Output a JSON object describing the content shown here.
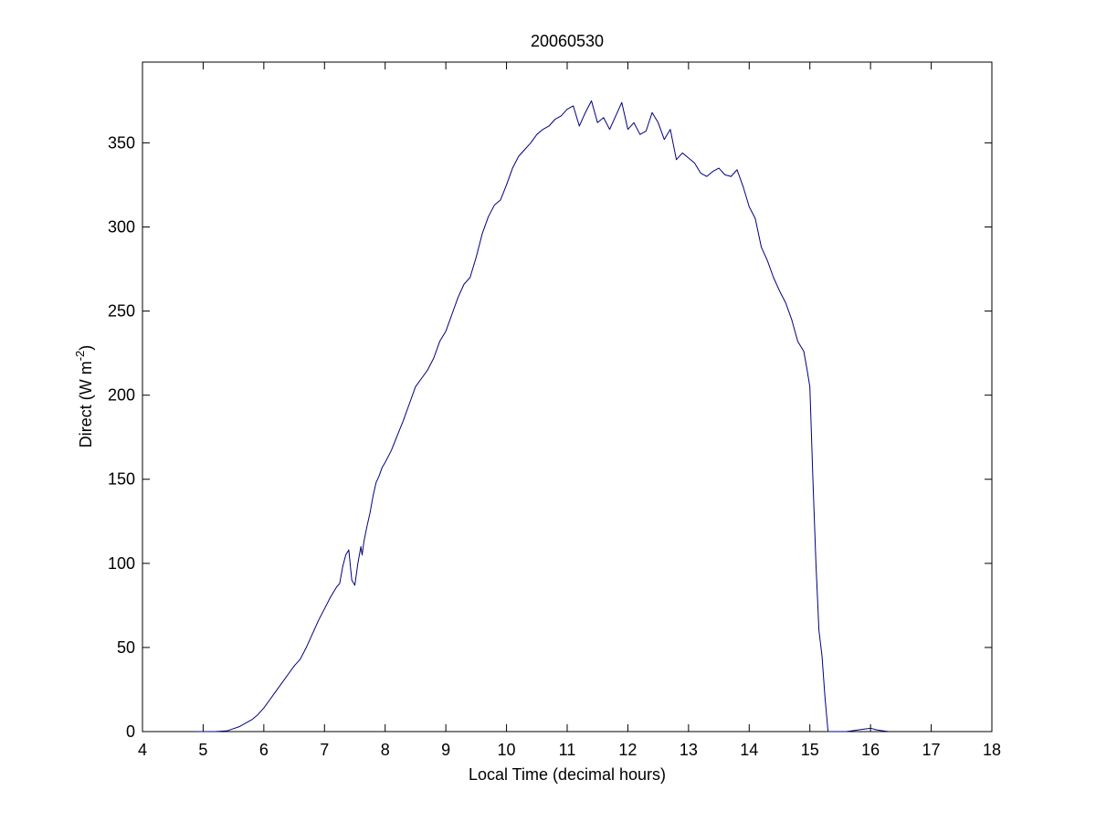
{
  "chart_data": {
    "type": "line",
    "title": "20060530",
    "xlabel": "Local Time (decimal hours)",
    "ylabel": {
      "prefix": "Direct (W m",
      "exponent": "-2",
      "suffix": ")"
    },
    "xlim": [
      4,
      18
    ],
    "ylim": [
      0,
      398
    ],
    "xticks": [
      4,
      5,
      6,
      7,
      8,
      9,
      10,
      11,
      12,
      13,
      14,
      15,
      16,
      17,
      18
    ],
    "yticks": [
      0,
      50,
      100,
      150,
      200,
      250,
      300,
      350
    ],
    "grid": false,
    "colors": {
      "line": "#00007f",
      "axes": "#000000",
      "background": "#ffffff"
    },
    "series": [
      {
        "x": [
          4.88,
          5.0,
          5.2,
          5.4,
          5.6,
          5.8,
          5.9,
          6.0,
          6.1,
          6.2,
          6.3,
          6.4,
          6.5,
          6.6,
          6.7,
          6.8,
          6.9,
          7.0,
          7.1,
          7.2,
          7.25,
          7.3,
          7.35,
          7.4,
          7.45,
          7.5,
          7.55,
          7.6,
          7.62,
          7.65,
          7.7,
          7.75,
          7.8,
          7.85,
          7.9,
          7.95,
          8.0,
          8.1,
          8.2,
          8.3,
          8.4,
          8.5,
          8.6,
          8.7,
          8.8,
          8.9,
          9.0,
          9.1,
          9.2,
          9.3,
          9.4,
          9.5,
          9.6,
          9.7,
          9.8,
          9.9,
          10.0,
          10.1,
          10.2,
          10.3,
          10.4,
          10.5,
          10.6,
          10.7,
          10.8,
          10.9,
          11.0,
          11.1,
          11.2,
          11.3,
          11.4,
          11.5,
          11.6,
          11.7,
          11.8,
          11.9,
          12.0,
          12.1,
          12.2,
          12.3,
          12.4,
          12.5,
          12.6,
          12.7,
          12.8,
          12.9,
          13.0,
          13.1,
          13.2,
          13.3,
          13.4,
          13.5,
          13.6,
          13.7,
          13.8,
          13.9,
          14.0,
          14.1,
          14.2,
          14.3,
          14.4,
          14.5,
          14.6,
          14.7,
          14.8,
          14.9,
          14.95,
          15.0,
          15.05,
          15.1,
          15.15,
          15.2,
          15.25,
          15.3,
          15.35,
          15.4,
          15.5,
          15.6,
          15.7,
          15.8,
          15.9,
          16.0,
          16.1,
          16.2,
          16.3
        ],
        "y": [
          0,
          0,
          0,
          0.5,
          3,
          7,
          10,
          14,
          19,
          24,
          29,
          34,
          39,
          43,
          50,
          58,
          66,
          73,
          80,
          86,
          88,
          98,
          105,
          108,
          90,
          87,
          100,
          110,
          105,
          113,
          122,
          130,
          140,
          148,
          152,
          157,
          160,
          167,
          176,
          185,
          195,
          205,
          210,
          215,
          222,
          232,
          238,
          248,
          258,
          266,
          270,
          282,
          296,
          306,
          313,
          316,
          325,
          335,
          342,
          346,
          350,
          355,
          358,
          360,
          364,
          366,
          370,
          372,
          360,
          368,
          375,
          362,
          365,
          358,
          366,
          374,
          358,
          362,
          355,
          357,
          368,
          362,
          352,
          358,
          340,
          344,
          341,
          338,
          332,
          330,
          333,
          335,
          331,
          330,
          334,
          324,
          312,
          305,
          288,
          280,
          270,
          262,
          255,
          245,
          232,
          226,
          216,
          205,
          150,
          100,
          60,
          45,
          20,
          0,
          0,
          0,
          0,
          0,
          0.5,
          1,
          1.5,
          2,
          1,
          0.5,
          0
        ]
      }
    ]
  }
}
